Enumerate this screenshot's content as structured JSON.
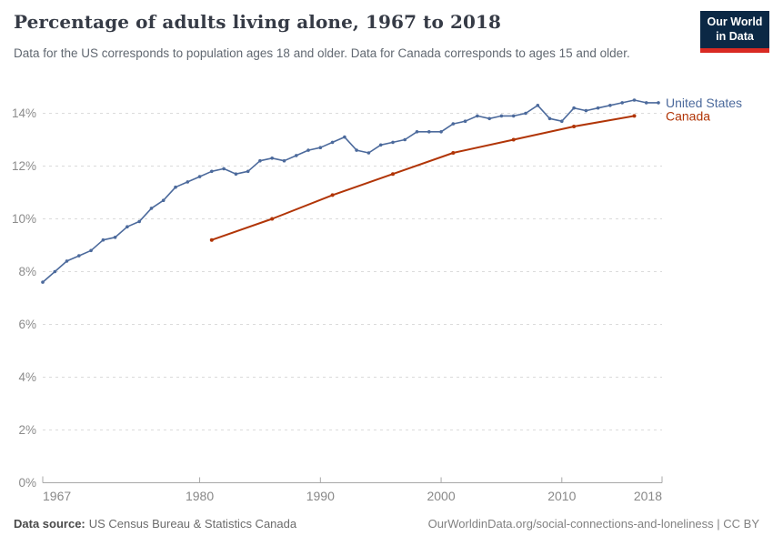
{
  "header": {
    "title": "Percentage of adults living alone, 1967 to 2018",
    "subtitle": "Data for the US corresponds to population ages 18 and older. Data for Canada corresponds to ages 15 and older.",
    "logo": {
      "line1": "Our World",
      "line2": "in Data"
    }
  },
  "chart_data": {
    "type": "line",
    "title": "Percentage of adults living alone, 1967 to 2018",
    "x_axis": {
      "ticks": [
        1967,
        1980,
        1990,
        2000,
        2010,
        2018
      ],
      "range": [
        1967,
        2018
      ]
    },
    "y_axis": {
      "ticks": [
        0,
        2,
        4,
        6,
        8,
        10,
        12,
        14
      ],
      "unit": "%",
      "range": [
        0,
        14.6
      ],
      "gridlines": "dashed-horizontal"
    },
    "legend_position": "right-of-line-ends",
    "series": [
      {
        "name": "United States",
        "color": "#4C6A9C",
        "x": [
          1967,
          1968,
          1969,
          1970,
          1971,
          1972,
          1973,
          1974,
          1975,
          1976,
          1977,
          1978,
          1979,
          1980,
          1981,
          1982,
          1983,
          1984,
          1985,
          1986,
          1987,
          1988,
          1989,
          1990,
          1991,
          1992,
          1993,
          1994,
          1995,
          1996,
          1997,
          1998,
          1999,
          2000,
          2001,
          2002,
          2003,
          2004,
          2005,
          2006,
          2007,
          2008,
          2009,
          2010,
          2011,
          2012,
          2013,
          2014,
          2015,
          2016,
          2017,
          2018
        ],
        "values": [
          7.6,
          8.0,
          8.4,
          8.6,
          8.8,
          9.2,
          9.3,
          9.7,
          9.9,
          10.4,
          10.7,
          11.2,
          11.4,
          11.6,
          11.8,
          11.9,
          11.7,
          11.8,
          12.2,
          12.3,
          12.2,
          12.4,
          12.6,
          12.7,
          12.9,
          13.1,
          12.6,
          12.5,
          12.8,
          12.9,
          13.0,
          13.3,
          13.3,
          13.3,
          13.6,
          13.7,
          13.9,
          13.8,
          13.9,
          13.9,
          14.0,
          14.3,
          13.8,
          13.7,
          14.2,
          14.1,
          14.2,
          14.3,
          14.4,
          14.5,
          14.4,
          14.4
        ]
      },
      {
        "name": "Canada",
        "color": "#B13507",
        "x": [
          1981,
          1986,
          1991,
          1996,
          2001,
          2006,
          2011,
          2016
        ],
        "values": [
          9.2,
          10.0,
          10.9,
          11.7,
          12.5,
          13.0,
          13.5,
          13.9
        ]
      }
    ]
  },
  "footer": {
    "source_label": "Data source:",
    "source_value": "US Census Bureau & Statistics Canada",
    "credit": "OurWorldinData.org/social-connections-and-loneliness | CC BY"
  },
  "colors": {
    "united_states": "#4C6A9C",
    "canada": "#B13507",
    "gridline": "#DBDBDB",
    "axis": "#A8A8A8",
    "tick_label": "#8C8C8C",
    "logo_background": "#0B2845",
    "logo_stripe": "#D92A23"
  }
}
